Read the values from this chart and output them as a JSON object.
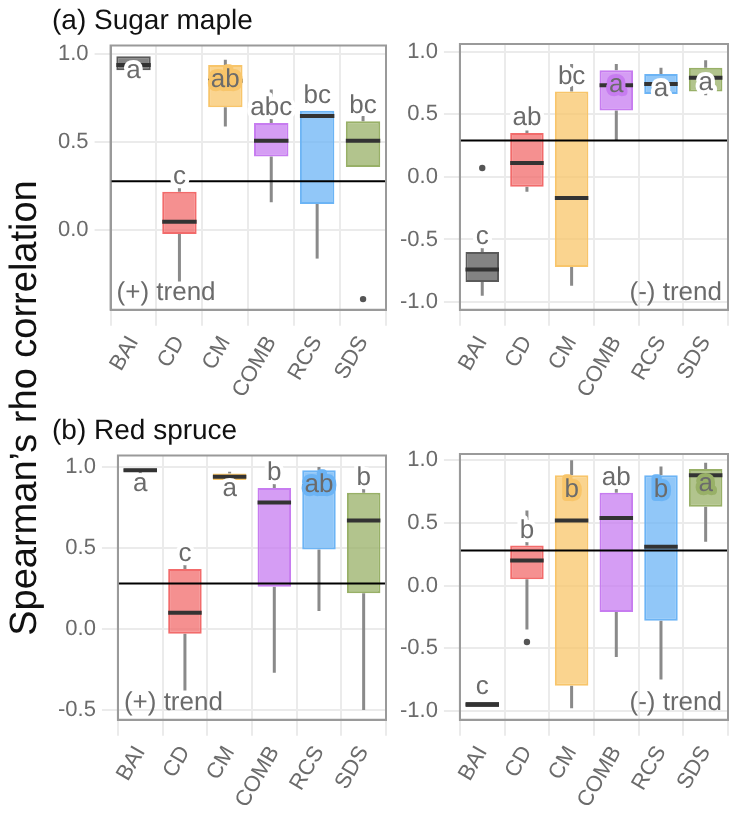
{
  "chart_data": [
    {
      "type": "box",
      "title": "(a) Sugar maple",
      "ylabel": "Spearman’s rho correlation",
      "categories": [
        "BAI",
        "CD",
        "CM",
        "COMB",
        "RCS",
        "SDS"
      ],
      "colors": [
        "#5a5a5a",
        "#f26b6b",
        "#f8c56a",
        "#c77cf0",
        "#6cb4f5",
        "#98b067"
      ],
      "boxes": [
        {
          "low": 0.89,
          "q1": 0.91,
          "median": 0.94,
          "q3": 0.99,
          "high": 0.99
        },
        {
          "low": -0.29,
          "q1": -0.02,
          "median": 0.05,
          "q3": 0.22,
          "high": 0.27
        },
        {
          "low": 0.59,
          "q1": 0.7,
          "median": 0.85,
          "q3": 0.94,
          "high": 0.97
        },
        {
          "low": 0.16,
          "q1": 0.42,
          "median": 0.51,
          "q3": 0.61,
          "high": 0.8
        },
        {
          "low": -0.16,
          "q1": 0.15,
          "median": 0.65,
          "q3": 0.68,
          "high": 0.68
        },
        {
          "low": 0.36,
          "q1": 0.36,
          "median": 0.51,
          "q3": 0.62,
          "high": 0.65,
          "outliers": [
            -0.39
          ]
        }
      ],
      "ylim": [
        -0.45,
        1.05
      ],
      "yticks": [
        {
          "value": 0,
          "label": "0.0"
        },
        {
          "value": 0.5,
          "label": "0.5"
        },
        {
          "value": 1,
          "label": "1.0"
        }
      ],
      "ref_lines": [
        {
          "axis": "y",
          "value": 0.28,
          "color": "#000000"
        }
      ],
      "grid": true,
      "annotations": [
        "(+) trend",
        "a",
        "c",
        "ab",
        "abc",
        "bc",
        "bc"
      ]
    },
    {
      "type": "box",
      "categories": [
        "BAI",
        "CD",
        "CM",
        "COMB",
        "RCS",
        "SDS"
      ],
      "colors": [
        "#5a5a5a",
        "#f26b6b",
        "#f8c56a",
        "#c77cf0",
        "#6cb4f5",
        "#98b067"
      ],
      "boxes": [
        {
          "low": -0.95,
          "q1": -0.84,
          "median": -0.74,
          "q3": -0.6,
          "high": -0.54,
          "outliers": [
            0.07
          ]
        },
        {
          "low": -0.12,
          "q1": -0.08,
          "median": 0.11,
          "q3": 0.35,
          "high": 0.37
        },
        {
          "low": -0.87,
          "q1": -0.72,
          "median": -0.17,
          "q3": 0.68,
          "high": 0.9
        },
        {
          "low": 0.29,
          "q1": 0.53,
          "median": 0.73,
          "q3": 0.85,
          "high": 0.9
        },
        {
          "low": 0.63,
          "q1": 0.66,
          "median": 0.74,
          "q3": 0.82,
          "high": 0.87
        },
        {
          "low": 0.65,
          "q1": 0.68,
          "median": 0.79,
          "q3": 0.87,
          "high": 0.93
        }
      ],
      "ylim": [
        -1.06,
        1.06
      ],
      "yticks": [
        {
          "value": -1,
          "label": "-1.0"
        },
        {
          "value": -0.5,
          "label": "-0.5"
        },
        {
          "value": 0,
          "label": "0.0"
        },
        {
          "value": 0.5,
          "label": "0.5"
        },
        {
          "value": 1,
          "label": "1.0"
        }
      ],
      "ref_lines": [
        {
          "axis": "y",
          "value": 0.29,
          "color": "#000000"
        }
      ],
      "grid": true,
      "annotations": [
        "(-) trend",
        "c",
        "ab",
        "bc",
        "a",
        "a",
        "a"
      ]
    },
    {
      "type": "box",
      "title": "(b) Red spruce",
      "categories": [
        "BAI",
        "CD",
        "CM",
        "COMB",
        "RCS",
        "SDS"
      ],
      "colors": [
        "#5a5a5a",
        "#f26b6b",
        "#f8c56a",
        "#c77cf0",
        "#6cb4f5",
        "#98b067"
      ],
      "boxes": [
        {
          "low": 0.95,
          "q1": 0.97,
          "median": 0.98,
          "q3": 0.99,
          "high": 0.99
        },
        {
          "low": -0.38,
          "q1": -0.03,
          "median": 0.1,
          "q3": 0.37,
          "high": 0.5
        },
        {
          "low": 0.9,
          "q1": 0.92,
          "median": 0.94,
          "q3": 0.96,
          "high": 0.97
        },
        {
          "low": -0.27,
          "q1": 0.26,
          "median": 0.78,
          "q3": 0.87,
          "high": 1.0
        },
        {
          "low": 0.11,
          "q1": 0.49,
          "median": 0.88,
          "q3": 0.98,
          "high": 1.0
        },
        {
          "low": -0.5,
          "q1": 0.22,
          "median": 0.67,
          "q3": 0.84,
          "high": 0.95
        }
      ],
      "ylim": [
        -0.56,
        1.07
      ],
      "yticks": [
        {
          "value": -0.5,
          "label": "-0.5"
        },
        {
          "value": 0,
          "label": "0.0"
        },
        {
          "value": 0.5,
          "label": "0.5"
        },
        {
          "value": 1,
          "label": "1.0"
        }
      ],
      "ref_lines": [
        {
          "axis": "y",
          "value": 0.28,
          "color": "#000000"
        }
      ],
      "grid": true,
      "annotations": [
        "(+) trend",
        "a",
        "c",
        "a",
        "b",
        "ab",
        "b"
      ]
    },
    {
      "type": "box",
      "categories": [
        "BAI",
        "CD",
        "CM",
        "COMB",
        "RCS",
        "SDS"
      ],
      "colors": [
        "#5a5a5a",
        "#f26b6b",
        "#f8c56a",
        "#c77cf0",
        "#6cb4f5",
        "#98b067"
      ],
      "boxes": [
        {
          "low": -0.97,
          "q1": -0.97,
          "median": -0.95,
          "q3": -0.93,
          "high": -0.93
        },
        {
          "low": -0.35,
          "q1": 0.05,
          "median": 0.2,
          "q3": 0.32,
          "high": 0.6,
          "outliers": [
            -0.45
          ]
        },
        {
          "low": -0.98,
          "q1": -0.8,
          "median": 0.52,
          "q3": 0.88,
          "high": 1.0
        },
        {
          "low": -0.57,
          "q1": -0.21,
          "median": 0.54,
          "q3": 0.74,
          "high": 0.93
        },
        {
          "low": -0.75,
          "q1": -0.28,
          "median": 0.31,
          "q3": 0.88,
          "high": 0.95
        },
        {
          "low": 0.35,
          "q1": 0.63,
          "median": 0.88,
          "q3": 0.93,
          "high": 0.98
        }
      ],
      "ylim": [
        -1.07,
        1.05
      ],
      "yticks": [
        {
          "value": -1,
          "label": "-1.0"
        },
        {
          "value": -0.5,
          "label": "-0.5"
        },
        {
          "value": 0,
          "label": "0.0"
        },
        {
          "value": 0.5,
          "label": "0.5"
        },
        {
          "value": 1,
          "label": "1.0"
        }
      ],
      "ref_lines": [
        {
          "axis": "y",
          "value": 0.28,
          "color": "#000000"
        }
      ],
      "grid": true,
      "annotations": [
        "(-) trend",
        "c",
        "b",
        "b",
        "ab",
        "b",
        "a"
      ]
    }
  ]
}
